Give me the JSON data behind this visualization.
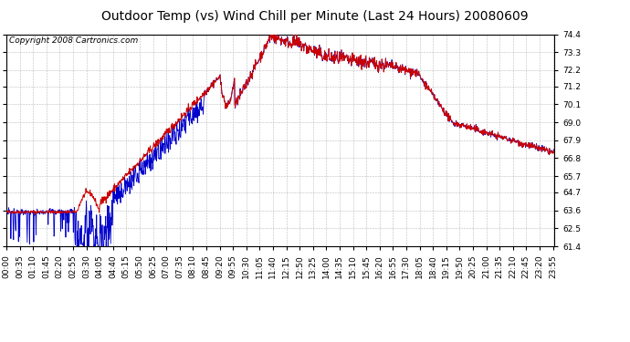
{
  "title": "Outdoor Temp (vs) Wind Chill per Minute (Last 24 Hours) 20080609",
  "copyright_text": "Copyright 2008 Cartronics.com",
  "background_color": "#ffffff",
  "plot_bg_color": "#ffffff",
  "grid_color": "#aaaaaa",
  "red_line_color": "#cc0000",
  "blue_line_color": "#0000cc",
  "ylim": [
    61.4,
    74.4
  ],
  "yticks": [
    61.4,
    62.5,
    63.6,
    64.7,
    65.7,
    66.8,
    67.9,
    69.0,
    70.1,
    71.2,
    72.2,
    73.3,
    74.4
  ],
  "num_minutes": 1440,
  "title_fontsize": 10,
  "tick_fontsize": 6.5,
  "copyright_fontsize": 6.5,
  "xtick_step": 35
}
